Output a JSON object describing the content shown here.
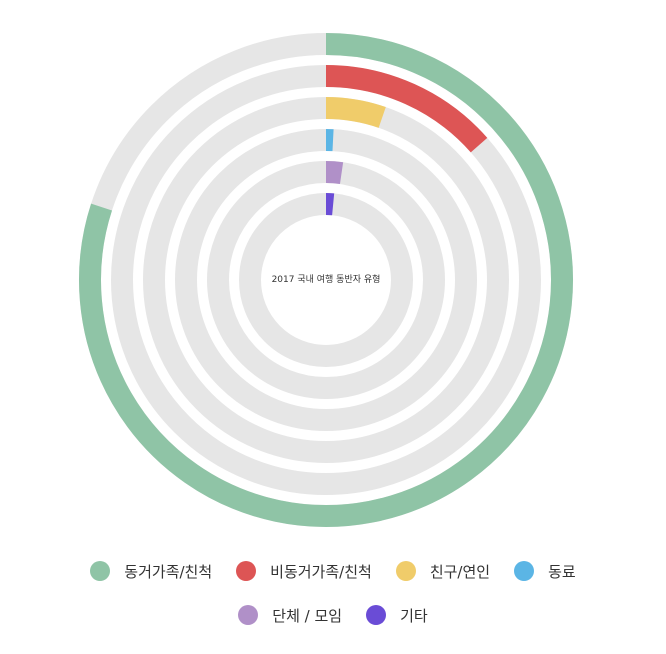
{
  "chart_data": {
    "type": "radial-bar",
    "title": "2017 국내 여행 동반자 유형",
    "max": 100,
    "series": [
      {
        "name": "동거가족/친척",
        "value": 80.0,
        "color": "#8fc4a6"
      },
      {
        "name": "비동거가족/친척",
        "value": 13.5,
        "color": "#dd5555"
      },
      {
        "name": "친구/연인",
        "value": 5.3,
        "color": "#f0cc6a"
      },
      {
        "name": "동료",
        "value": 0.8,
        "color": "#5bb5e5"
      },
      {
        "name": "단체 / 모임",
        "value": 2.3,
        "color": "#b090c8"
      },
      {
        "name": "기타",
        "value": 1.5,
        "color": "#6a4cd6"
      }
    ],
    "track_color": "#e6e6e6",
    "legend_position": "bottom"
  }
}
